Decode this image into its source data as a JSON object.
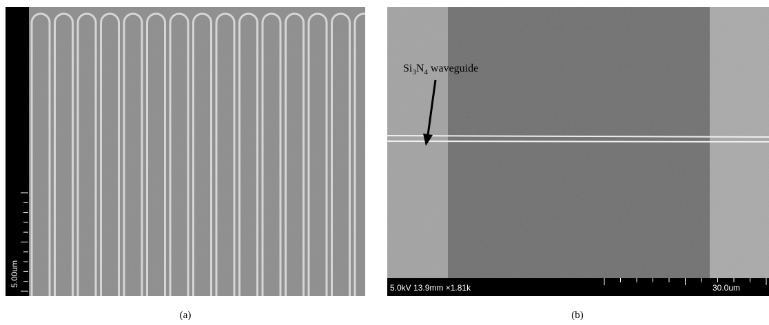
{
  "figure": {
    "panel_a": {
      "scale_label": "5.00um",
      "caption": "(a)"
    },
    "panel_b": {
      "annotation": {
        "parts": [
          "Si",
          "3",
          "N",
          "4",
          " waveguide"
        ]
      },
      "info_bar": "5.0kV 13.9mm ×1.81k",
      "scale_label": "30.0um",
      "caption": "(b)"
    }
  }
}
